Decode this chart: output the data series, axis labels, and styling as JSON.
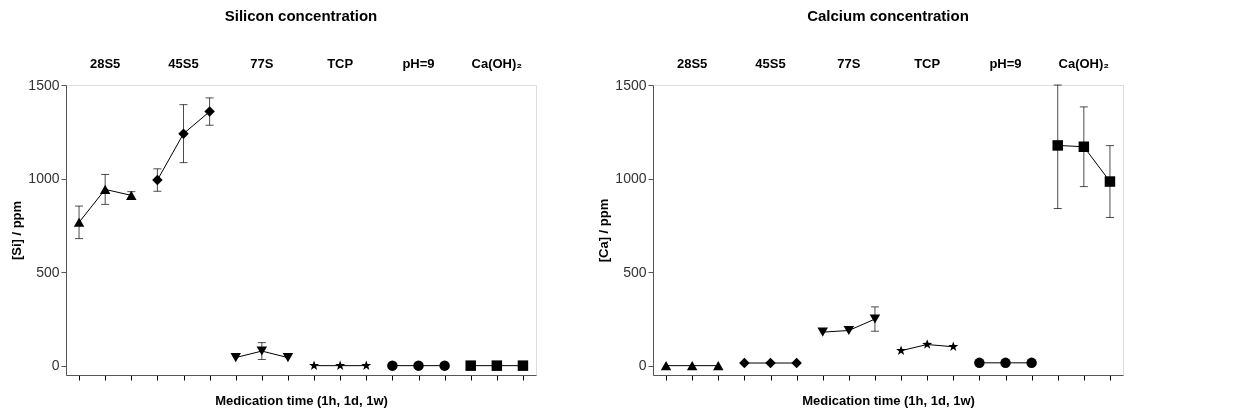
{
  "chart_data": [
    {
      "type": "line",
      "title": "Silicon concentration",
      "xlabel": "Medication time (1h, 1d, 1w)",
      "ylabel": "[Si] / ppm",
      "annotations": [
        "28S5",
        "45S5",
        "77S",
        "TCP",
        "pH=9",
        "Ca(OH)₂"
      ],
      "categories": [
        null,
        null,
        null,
        null,
        null,
        null,
        null,
        null,
        null,
        null,
        null,
        null,
        null,
        null,
        null,
        null,
        null,
        null
      ],
      "ylim": [
        -50,
        1500
      ],
      "yticks": [
        0,
        500,
        1000,
        1500
      ],
      "grid": false,
      "tick_labels": "y",
      "line_style": "solid",
      "series": [
        {
          "color": "#000000",
          "marker": "triangle",
          "values": [
            766,
            942,
            910,
            null,
            null,
            null,
            null,
            null,
            null,
            null,
            null,
            null,
            null,
            null,
            null,
            null,
            null,
            null
          ],
          "errors": [
            87,
            80,
            20,
            null,
            null,
            null,
            null,
            null,
            null,
            null,
            null,
            null,
            null,
            null,
            null,
            null,
            null,
            null
          ]
        },
        {
          "color": "#000000",
          "marker": "diamond",
          "values": [
            null,
            null,
            null,
            992,
            1240,
            1358,
            null,
            null,
            null,
            null,
            null,
            null,
            null,
            null,
            null,
            null,
            null,
            null
          ],
          "errors": [
            null,
            null,
            null,
            60,
            155,
            73,
            null,
            null,
            null,
            null,
            null,
            null,
            null,
            null,
            null,
            null,
            null,
            null
          ]
        },
        {
          "color": "#000000",
          "marker": "triangle-down",
          "values": [
            null,
            null,
            null,
            null,
            null,
            null,
            43,
            78,
            43,
            null,
            null,
            null,
            null,
            null,
            null,
            null,
            null,
            null
          ],
          "errors": [
            null,
            null,
            null,
            null,
            null,
            null,
            null,
            45,
            null,
            null,
            null,
            null,
            null,
            null,
            null,
            null,
            null,
            null
          ]
        },
        {
          "color": "#000000",
          "marker": "star",
          "values": [
            null,
            null,
            null,
            null,
            null,
            null,
            null,
            null,
            null,
            0,
            0,
            0,
            null,
            null,
            null,
            null,
            null,
            null
          ]
        },
        {
          "color": "#000000",
          "marker": "circle",
          "values": [
            null,
            null,
            null,
            null,
            null,
            null,
            null,
            null,
            null,
            null,
            null,
            null,
            0,
            0,
            0,
            null,
            null,
            null
          ]
        },
        {
          "color": "#000000",
          "marker": "square",
          "values": [
            null,
            null,
            null,
            null,
            null,
            null,
            null,
            null,
            null,
            null,
            null,
            null,
            null,
            null,
            null,
            0,
            0,
            0
          ]
        }
      ]
    },
    {
      "type": "line",
      "title": "Calcium concentration",
      "xlabel": "Medication time (1h, 1d, 1w)",
      "ylabel": "[Ca] / ppm",
      "annotations": [
        "28S5",
        "45S5",
        "77S",
        "TCP",
        "pH=9",
        "Ca(OH)₂"
      ],
      "categories": [
        null,
        null,
        null,
        null,
        null,
        null,
        null,
        null,
        null,
        null,
        null,
        null,
        null,
        null,
        null,
        null,
        null,
        null
      ],
      "ylim": [
        -50,
        1500
      ],
      "yticks": [
        0,
        500,
        1000,
        1500
      ],
      "grid": false,
      "tick_labels": "y",
      "line_style": "solid",
      "series": [
        {
          "color": "#000000",
          "marker": "triangle",
          "values": [
            0,
            0,
            0,
            null,
            null,
            null,
            null,
            null,
            null,
            null,
            null,
            null,
            null,
            null,
            null,
            null,
            null,
            null
          ]
        },
        {
          "color": "#000000",
          "marker": "diamond",
          "values": [
            null,
            null,
            null,
            14,
            14,
            14,
            null,
            null,
            null,
            null,
            null,
            null,
            null,
            null,
            null,
            null,
            null,
            null
          ]
        },
        {
          "color": "#000000",
          "marker": "triangle-down",
          "values": [
            null,
            null,
            null,
            null,
            null,
            null,
            179,
            188,
            249,
            null,
            null,
            null,
            null,
            null,
            null,
            null,
            null,
            null
          ],
          "errors": [
            null,
            null,
            null,
            null,
            null,
            null,
            null,
            null,
            65,
            null,
            null,
            null,
            null,
            null,
            null,
            null,
            null,
            null
          ]
        },
        {
          "color": "#000000",
          "marker": "star",
          "values": [
            null,
            null,
            null,
            null,
            null,
            null,
            null,
            null,
            null,
            80,
            113,
            101,
            null,
            null,
            null,
            null,
            null,
            null
          ]
        },
        {
          "color": "#000000",
          "marker": "circle",
          "values": [
            null,
            null,
            null,
            null,
            null,
            null,
            null,
            null,
            null,
            null,
            null,
            null,
            15,
            15,
            15,
            null,
            null,
            null
          ]
        },
        {
          "color": "#000000",
          "marker": "square",
          "values": [
            null,
            null,
            null,
            null,
            null,
            null,
            null,
            null,
            null,
            null,
            null,
            null,
            null,
            null,
            null,
            1177,
            1170,
            984
          ],
          "errors": [
            null,
            null,
            null,
            null,
            null,
            null,
            null,
            null,
            null,
            null,
            null,
            null,
            null,
            null,
            null,
            [
              840,
              1500
            ],
            213,
            192
          ]
        }
      ]
    }
  ]
}
